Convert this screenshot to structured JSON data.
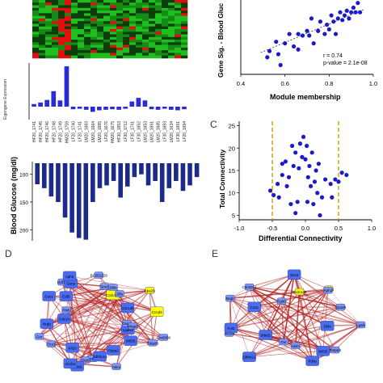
{
  "panels": {
    "c_label": "C",
    "d_label": "D",
    "e_label": "E"
  },
  "colors": {
    "heat_green": "#1fbf1f",
    "heat_dark": "#0b3d0b",
    "heat_red": "#e01010",
    "bar_blue": "#2b2bd6",
    "glucose_bar": "#1c2a8a",
    "point_blue": "#1a1acc",
    "dashed_gold": "#c8a400",
    "node_blue": "#4a6cf0",
    "node_blue_light": "#7f95f2",
    "node_yellow": "#ffff00",
    "edge_red": "#b22222"
  },
  "chart_data": [
    {
      "type": "heatmap",
      "rows": 22,
      "cols": 24
    },
    {
      "type": "bar",
      "ylabel": "Eigengene Expression",
      "categories": [
        "HF20_1741",
        "HF20_1745",
        "HF20_1746",
        "HF20_1748",
        "HF20_1749",
        "HM20_1759",
        "LF20_1740",
        "LF20_1741",
        "LM20_1683",
        "LM20_1684",
        "LM20_1685",
        "LF20_1676",
        "HM20_1675",
        "HF30_1653",
        "LF30_1712",
        "LF30_1741",
        "LF30_1652",
        "LM20_1653",
        "LM20_1691",
        "LM20_1685",
        "LF30_1693",
        "LM20_1634",
        "LF30_1691",
        "LF20_1694"
      ],
      "category_labels": [
        "HF20_1741",
        "HF20_1745",
        "HF20_1746",
        "HF20_1748",
        "HF20_1749",
        "HM20_1759",
        "LF20_1740",
        "LF20_1741",
        "LM20_1683",
        "LM20_1684",
        "LM20_1685",
        "LF20_1676",
        "HM20_1675",
        "HF30_1653",
        "LF30_1712",
        "LF30_1741",
        "LF30_1652",
        "LM20_1653",
        "LM20_1691",
        "LM20_1685",
        "LF30_1693",
        "LM20_1634",
        "LF30_1691",
        "LF20_1694"
      ],
      "values": [
        0.05,
        0.08,
        0.13,
        0.3,
        0.12,
        0.78,
        -0.05,
        -0.04,
        -0.06,
        -0.1,
        -0.07,
        -0.06,
        -0.05,
        -0.06,
        -0.04,
        0.1,
        0.17,
        0.12,
        -0.05,
        -0.06,
        -0.04,
        -0.06,
        -0.07,
        -0.05
      ]
    },
    {
      "type": "bar",
      "ylabel": "Blood Glucose (mg/dl)",
      "yticks": [
        "100",
        "150",
        "200"
      ],
      "ylim": [
        80,
        220
      ],
      "values": [
        118,
        125,
        140,
        150,
        178,
        205,
        215,
        218,
        150,
        125,
        120,
        112,
        142,
        122,
        105,
        100,
        120,
        112,
        150,
        125,
        112,
        130,
        120,
        105
      ]
    },
    {
      "type": "scatter",
      "title": "",
      "xlabel": "Module membership",
      "ylabel": "Gene Sig. - Blood Gluc",
      "xlim": [
        0.4,
        1.0
      ],
      "xticks": [
        "0.4",
        "0.6",
        "0.8",
        "1.0"
      ],
      "annotation_r": "r = 0.74",
      "annotation_p": "p-value = 2.1e-08",
      "points": [
        [
          0.52,
          0.41
        ],
        [
          0.53,
          0.45
        ],
        [
          0.56,
          0.51
        ],
        [
          0.58,
          0.36
        ],
        [
          0.57,
          0.43
        ],
        [
          0.6,
          0.5
        ],
        [
          0.62,
          0.56
        ],
        [
          0.64,
          0.48
        ],
        [
          0.66,
          0.56
        ],
        [
          0.68,
          0.55
        ],
        [
          0.7,
          0.58
        ],
        [
          0.71,
          0.55
        ],
        [
          0.73,
          0.5
        ],
        [
          0.75,
          0.58
        ],
        [
          0.76,
          0.64
        ],
        [
          0.78,
          0.56
        ],
        [
          0.79,
          0.62
        ],
        [
          0.8,
          0.59
        ],
        [
          0.81,
          0.68
        ],
        [
          0.82,
          0.64
        ],
        [
          0.83,
          0.56
        ],
        [
          0.84,
          0.66
        ],
        [
          0.85,
          0.7
        ],
        [
          0.86,
          0.65
        ],
        [
          0.87,
          0.68
        ],
        [
          0.88,
          0.71
        ],
        [
          0.89,
          0.66
        ],
        [
          0.9,
          0.7
        ],
        [
          0.91,
          0.73
        ],
        [
          0.92,
          0.7
        ],
        [
          0.93,
          0.76
        ],
        [
          0.94,
          0.7
        ],
        [
          0.72,
          0.66
        ],
        [
          0.66,
          0.46
        ]
      ],
      "fit": [
        [
          0.49,
          0.44
        ],
        [
          0.96,
          0.72
        ]
      ]
    },
    {
      "type": "scatter",
      "xlabel": "Differential Connectivity",
      "ylabel": "Total Connectivity",
      "xlim": [
        -1.0,
        1.0
      ],
      "ylim": [
        4,
        26
      ],
      "xticks": [
        "-1.0",
        "-0.5",
        "0.0",
        "0.5",
        "1.0"
      ],
      "yticks": [
        "5",
        "10",
        "15",
        "20",
        "25"
      ],
      "vlines": [
        -0.5,
        0.5
      ],
      "points": [
        [
          -0.53,
          10.5
        ],
        [
          -0.48,
          9.5
        ],
        [
          -0.42,
          12.0
        ],
        [
          -0.35,
          14.0
        ],
        [
          -0.3,
          17.0
        ],
        [
          -0.28,
          11.5
        ],
        [
          -0.25,
          13.5
        ],
        [
          -0.2,
          20.5
        ],
        [
          -0.18,
          16.0
        ],
        [
          -0.15,
          19.0
        ],
        [
          -0.12,
          8.0
        ],
        [
          -0.1,
          15.5
        ],
        [
          -0.08,
          21.0
        ],
        [
          -0.05,
          18.0
        ],
        [
          -0.03,
          22.5
        ],
        [
          0.0,
          17.5
        ],
        [
          0.02,
          20.5
        ],
        [
          0.04,
          13.5
        ],
        [
          0.06,
          16.0
        ],
        [
          0.08,
          11.5
        ],
        [
          0.1,
          19.0
        ],
        [
          0.12,
          7.5
        ],
        [
          0.14,
          12.5
        ],
        [
          0.16,
          15.0
        ],
        [
          0.18,
          10.0
        ],
        [
          0.22,
          5.0
        ],
        [
          0.25,
          9.0
        ],
        [
          -0.22,
          7.5
        ],
        [
          -0.4,
          9.0
        ],
        [
          -0.35,
          16.5
        ],
        [
          0.3,
          13.0
        ],
        [
          0.38,
          12.0
        ],
        [
          0.45,
          13.0
        ],
        [
          0.5,
          12.5
        ],
        [
          0.55,
          14.5
        ],
        [
          0.62,
          14.0
        ],
        [
          0.4,
          9.0
        ],
        [
          0.2,
          16.5
        ],
        [
          0.03,
          8.0
        ],
        [
          -0.15,
          5.5
        ]
      ]
    }
  ],
  "network_d": {
    "nodes": [
      {
        "label": "Gm5800"
      },
      {
        "label": "Lgals2"
      },
      {
        "label": "Entpd3"
      },
      {
        "label": "Wif25"
      },
      {
        "label": "Pppa2"
      },
      {
        "label": "Aktm"
      },
      {
        "label": "Pppa1"
      },
      {
        "label": "Zdhhc21"
      },
      {
        "label": "Srp9"
      },
      {
        "label": "Stbid1"
      },
      {
        "label": "Ak1b4"
      },
      {
        "label": "Kif10"
      },
      {
        "label": "Ocs1"
      },
      {
        "label": "Gsr"
      },
      {
        "label": "Fut4"
      },
      {
        "label": "Cdc14"
      },
      {
        "label": "Nrgb"
      },
      {
        "label": "Pfeb"
      },
      {
        "label": "Cox1"
      },
      {
        "label": "Edt5"
      },
      {
        "label": "Gdf16"
      },
      {
        "label": "Gsnp"
      },
      {
        "label": "Aph2"
      },
      {
        "label": "BC051226"
      },
      {
        "label": "Snx3"
      },
      {
        "label": "Ccdc148"
      },
      {
        "label": "Dlds"
      },
      {
        "label": "Slfa"
      },
      {
        "label": "Spa29"
      },
      {
        "label": "Cdc14b"
      },
      {
        "label": "Ccnd3"
      },
      {
        "label": "Gsg2"
      },
      {
        "label": "Mrgp1"
      }
    ]
  },
  "network_e": {
    "nodes": [
      {
        "label": "Lgals"
      },
      {
        "label": "Entpd3"
      },
      {
        "label": "Wif25"
      },
      {
        "label": "Pdxp"
      },
      {
        "label": "Aktm"
      },
      {
        "label": "Gsr"
      },
      {
        "label": "Zdhhc21"
      },
      {
        "label": "Stbid1"
      },
      {
        "label": "Ak1b4"
      },
      {
        "label": "Fut4"
      },
      {
        "label": "Nrgb"
      },
      {
        "label": "Cox1"
      },
      {
        "label": "Cdc0014"
      },
      {
        "label": "Fgb0"
      },
      {
        "label": "Snx3"
      },
      {
        "label": "Ccdc148"
      },
      {
        "label": "Ccnd3"
      },
      {
        "label": "Aph2"
      },
      {
        "label": "Spa29"
      },
      {
        "label": "Dlds"
      }
    ]
  }
}
